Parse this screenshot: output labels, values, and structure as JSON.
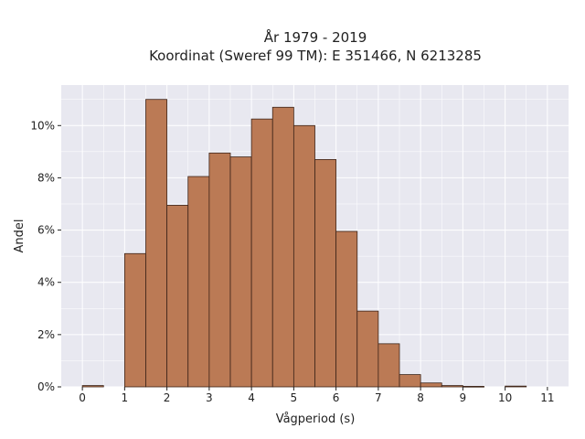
{
  "chart_data": {
    "type": "bar",
    "title_lines": [
      "År 1979 - 2019",
      "Koordinat (Sweref 99 TM): E 351466, N 6213285"
    ],
    "xlabel": "Vågperiod (s)",
    "ylabel": "Andel",
    "bin_width": 0.5,
    "bin_starts": [
      0,
      0.5,
      1,
      1.5,
      2,
      2.5,
      3,
      3.5,
      4,
      4.5,
      5,
      5.5,
      6,
      6.5,
      7,
      7.5,
      8,
      8.5,
      9,
      9.5,
      10,
      10.5
    ],
    "values": [
      0.05,
      0,
      5.1,
      11.0,
      6.95,
      8.05,
      8.95,
      8.8,
      10.25,
      10.7,
      10.0,
      8.7,
      5.95,
      2.9,
      1.65,
      0.47,
      0.15,
      0.05,
      0.02,
      0,
      0.03,
      0
    ],
    "xlim": [
      -0.5,
      11.5
    ],
    "ylim": [
      0,
      11.55
    ],
    "x_ticks": [
      0,
      1,
      2,
      3,
      4,
      5,
      6,
      7,
      8,
      9,
      10,
      11
    ],
    "x_tick_labels": [
      "0",
      "1",
      "2",
      "3",
      "4",
      "5",
      "6",
      "7",
      "8",
      "9",
      "10",
      "11"
    ],
    "y_ticks": [
      0,
      2,
      4,
      6,
      8,
      10
    ],
    "y_tick_labels": [
      "0%",
      "2%",
      "4%",
      "6%",
      "8%",
      "10%"
    ],
    "grid": true,
    "colors": {
      "bar_fill": "#bb7a55",
      "bar_edge": "#3d2418",
      "plot_bg": "#e8e8f0",
      "grid": "#ffffff",
      "text": "#222222"
    }
  }
}
